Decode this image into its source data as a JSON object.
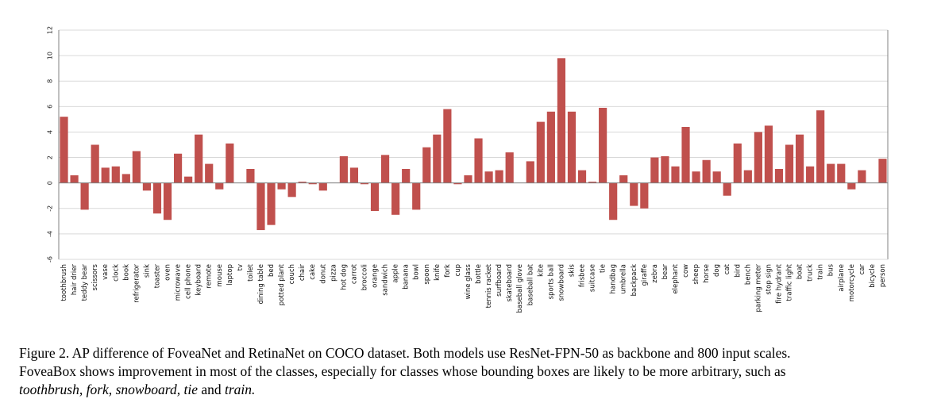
{
  "chart_data": {
    "type": "bar",
    "title": "",
    "xlabel": "",
    "ylabel": "",
    "ylim": [
      -6,
      12
    ],
    "yticks": [
      -6,
      -4,
      -2,
      0,
      2,
      4,
      6,
      8,
      10,
      12
    ],
    "bar_color": "#c0504d",
    "grid": true,
    "categories": [
      "toothbrush",
      "hair drier",
      "teddy bear",
      "scissors",
      "vase",
      "clock",
      "book",
      "refrigerator",
      "sink",
      "toaster",
      "oven",
      "microwave",
      "cell phone",
      "keyboard",
      "remote",
      "mouse",
      "laptop",
      "tv",
      "toilet",
      "dining table",
      "bed",
      "potted plant",
      "couch",
      "chair",
      "cake",
      "donut",
      "pizza",
      "hot dog",
      "carrot",
      "broccoli",
      "orange",
      "sandwich",
      "apple",
      "banana",
      "bowl",
      "spoon",
      "knife",
      "fork",
      "cup",
      "wine glass",
      "bottle",
      "tennis racket",
      "surfboard",
      "skateboard",
      "baseball glove",
      "baseball bat",
      "kite",
      "sports ball",
      "snowboard",
      "skis",
      "frisbee",
      "suitcase",
      "tie",
      "handbag",
      "umbrella",
      "backpack",
      "giraffe",
      "zebra",
      "bear",
      "elephant",
      "cow",
      "sheep",
      "horse",
      "dog",
      "cat",
      "bird",
      "bench",
      "parking meter",
      "stop sign",
      "fire hydrant",
      "traffic light",
      "boat",
      "truck",
      "train",
      "bus",
      "airplane",
      "motorcycle",
      "car",
      "bicycle",
      "person"
    ],
    "values": [
      5.2,
      0.6,
      -2.1,
      3.0,
      1.2,
      1.3,
      0.7,
      2.5,
      -0.6,
      -2.4,
      -2.9,
      2.3,
      0.5,
      3.8,
      1.5,
      -0.5,
      3.1,
      0.0,
      1.1,
      -3.7,
      -3.3,
      -0.5,
      -1.1,
      0.1,
      -0.1,
      -0.6,
      0.0,
      2.1,
      1.2,
      -0.1,
      -2.2,
      2.2,
      -2.5,
      1.1,
      -2.1,
      2.8,
      3.8,
      5.8,
      -0.1,
      0.6,
      3.5,
      0.9,
      1.0,
      2.4,
      0.0,
      1.7,
      4.8,
      5.6,
      9.8,
      5.6,
      1.0,
      0.1,
      5.9,
      -2.9,
      0.6,
      -1.8,
      -2.0,
      2.0,
      2.1,
      1.3,
      4.4,
      0.9,
      1.8,
      0.9,
      -1.0,
      3.1,
      1.0,
      4.0,
      4.5,
      1.1,
      3.0,
      3.8,
      1.3,
      5.7,
      1.5,
      1.5,
      -0.5,
      1.0,
      0.0,
      1.9
    ]
  },
  "caption": {
    "line1": "Figure 2. AP difference of FoveaNet and RetinaNet on COCO dataset. Both models use ResNet-FPN-50 as backbone and 800 input scales.",
    "line2": "FoveaBox shows improvement in most of the classes, especially for classes whose bounding boxes are likely to be more arbitrary, such as",
    "ex1": "toothbrush,",
    "ex2": "fork,",
    "ex3": "snowboard,",
    "ex4": "tie",
    "and": "and",
    "ex5": "train."
  }
}
